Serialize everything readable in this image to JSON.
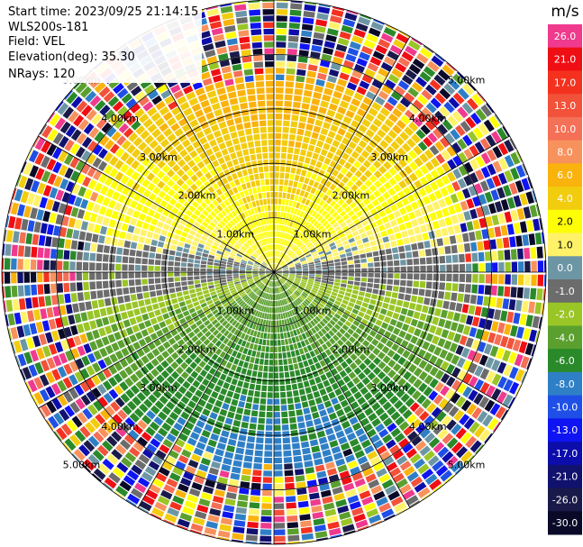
{
  "header": {
    "start_time": "Start time: 2023/09/25 21:14:15",
    "site": "WLS200s-181",
    "field": "Field: VEL",
    "elevation": "Elevation(deg): 35.30",
    "nrays": "NRays: 120"
  },
  "chart_data": {
    "type": "heatmap",
    "projection": "polar-ppi",
    "field": "VEL",
    "nrays": 120,
    "range_rings_km": [
      1,
      2,
      3,
      4,
      5
    ],
    "range_ring_labels": [
      "1.00km",
      "2.00km",
      "3.00km",
      "4.00km",
      "5.00km"
    ],
    "label_angles_deg": [
      45,
      135,
      225,
      315
    ],
    "spokes_deg": [
      0,
      30,
      60,
      90,
      120,
      150,
      180,
      210,
      240,
      270,
      300,
      330
    ],
    "colorbar": {
      "unit": "m/s",
      "ticks": [
        "26.0",
        "21.0",
        "17.0",
        "13.0",
        "10.0",
        "8.0",
        "6.0",
        "4.0",
        "2.0",
        "1.0",
        "0.0",
        "-1.0",
        "-2.0",
        "-4.0",
        "-6.0",
        "-8.0",
        "-10.0",
        "-13.0",
        "-17.0",
        "-21.0",
        "-26.0",
        "-30.0"
      ],
      "colors": [
        "#ef3a8e",
        "#ef0e14",
        "#f4311f",
        "#f2513a",
        "#f47056",
        "#f8925d",
        "#f9b30c",
        "#f2cc0e",
        "#fefe07",
        "#fff268",
        "#6d96a5",
        "#6c6c6c",
        "#9ac526",
        "#5ba02f",
        "#2a8a2a",
        "#2f7fc6",
        "#1f4fe6",
        "#0f14f2",
        "#0d0dac",
        "#11116e",
        "#1a1a4a",
        "#0a0a28"
      ]
    },
    "pattern": {
      "rings_km": 5.0,
      "noisy_beyond_km": 3.6,
      "approach_sector": "south (negative, greens/blues)",
      "recede_sector": "north (positive, yellows/oranges)"
    }
  }
}
